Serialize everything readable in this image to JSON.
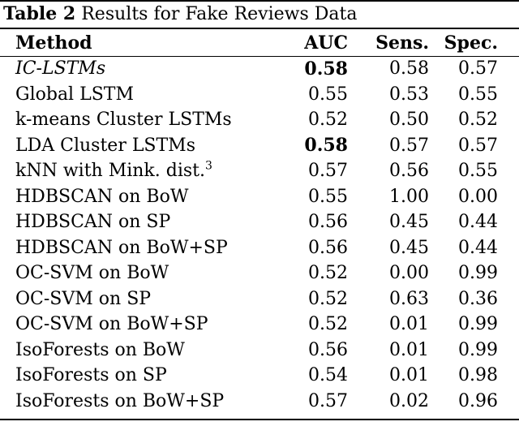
{
  "caption": {
    "label": "Table 2",
    "text": "Results for Fake Reviews Data"
  },
  "headers": {
    "method": "Method",
    "auc": "AUC",
    "sens": "Sens.",
    "spec": "Spec."
  },
  "rows": [
    {
      "method": "IC-LSTMs",
      "auc": "0.58",
      "sens": "0.58",
      "spec": "0.57",
      "italic_method": true,
      "bold_auc": true
    },
    {
      "method": "Global LSTM",
      "auc": "0.55",
      "sens": "0.53",
      "spec": "0.55"
    },
    {
      "method": "k-means Cluster LSTMs",
      "auc": "0.52",
      "sens": "0.50",
      "spec": "0.52"
    },
    {
      "method": "LDA Cluster LSTMs",
      "auc": "0.58",
      "sens": "0.57",
      "spec": "0.57",
      "bold_auc": true
    },
    {
      "method": "kNN with Mink. dist.",
      "footnote": "3",
      "auc": "0.57",
      "sens": "0.56",
      "spec": "0.55"
    },
    {
      "method": "HDBSCAN on BoW",
      "auc": "0.55",
      "sens": "1.00",
      "spec": "0.00"
    },
    {
      "method": "HDBSCAN on SP",
      "auc": "0.56",
      "sens": "0.45",
      "spec": "0.44"
    },
    {
      "method": "HDBSCAN on BoW+SP",
      "auc": "0.56",
      "sens": "0.45",
      "spec": "0.44"
    },
    {
      "method": "OC-SVM on BoW",
      "auc": "0.52",
      "sens": "0.00",
      "spec": "0.99"
    },
    {
      "method": "OC-SVM on SP",
      "auc": "0.52",
      "sens": "0.63",
      "spec": "0.36"
    },
    {
      "method": "OC-SVM on BoW+SP",
      "auc": "0.52",
      "sens": "0.01",
      "spec": "0.99"
    },
    {
      "method": "IsoForests on BoW",
      "auc": "0.56",
      "sens": "0.01",
      "spec": "0.99"
    },
    {
      "method": "IsoForests on SP",
      "auc": "0.54",
      "sens": "0.01",
      "spec": "0.98"
    },
    {
      "method": "IsoForests on BoW+SP",
      "auc": "0.57",
      "sens": "0.02",
      "spec": "0.96"
    }
  ]
}
